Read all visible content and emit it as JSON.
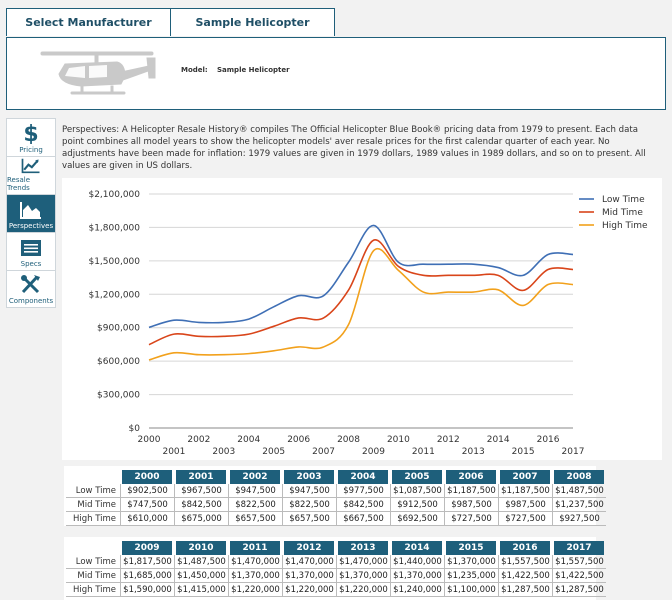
{
  "tabs": {
    "manufacturer": "Select Manufacturer",
    "model": "Sample Helicopter"
  },
  "header": {
    "model_label": "Model:",
    "model_value": "Sample Helicopter"
  },
  "sidebar": {
    "items": [
      {
        "label": "Pricing",
        "icon": "dollar-icon"
      },
      {
        "label": "Resale Trends",
        "icon": "trend-icon"
      },
      {
        "label": "Perspectives",
        "icon": "area-chart-icon"
      },
      {
        "label": "Specs",
        "icon": "list-icon"
      },
      {
        "label": "Components",
        "icon": "tools-icon"
      }
    ]
  },
  "description": "Perspectives: A Helicopter Resale History® compiles The Official Helicopter Blue Book® pricing data from 1979 to present. Each data point combines all model years to show the helicopter models' aver resale prices for the first calendar quarter of each year. No adjustments have been made for inflation: 1979 values are given in 1979 dollars, 1989 values in 1989 dollars, and so on to present. All values are given in US dollars.",
  "colors": {
    "accent": "#1e5f7b",
    "low": "#3f6fb5",
    "mid": "#d9451a",
    "high": "#f2a11c"
  },
  "chart_data": {
    "type": "line",
    "x": [
      2000,
      2001,
      2002,
      2003,
      2004,
      2005,
      2006,
      2007,
      2008,
      2009,
      2010,
      2011,
      2012,
      2013,
      2014,
      2015,
      2016,
      2017
    ],
    "ylim": [
      0,
      2100000
    ],
    "yticks": [
      "$0",
      "$300,000",
      "$600,000",
      "$900,000",
      "$1,200,000",
      "$1,500,000",
      "$1,800,000",
      "$2,100,000"
    ],
    "legend_position": "top-right",
    "grid": true,
    "series": [
      {
        "name": "Low Time",
        "values": [
          902500,
          967500,
          947500,
          947500,
          977500,
          1087500,
          1187500,
          1187500,
          1487500,
          1817500,
          1487500,
          1470000,
          1470000,
          1470000,
          1440000,
          1370000,
          1557500,
          1557500
        ]
      },
      {
        "name": "Mid Time",
        "values": [
          747500,
          842500,
          822500,
          822500,
          842500,
          912500,
          987500,
          987500,
          1237500,
          1685000,
          1450000,
          1370000,
          1370000,
          1370000,
          1370000,
          1235000,
          1422500,
          1422500
        ]
      },
      {
        "name": "High Time",
        "values": [
          610000,
          675000,
          657500,
          657500,
          667500,
          692500,
          727500,
          727500,
          927500,
          1590000,
          1415000,
          1220000,
          1220000,
          1220000,
          1240000,
          1100000,
          1287500,
          1287500
        ]
      }
    ]
  },
  "table": {
    "row_labels": [
      "Low Time",
      "Mid Time",
      "High Time"
    ],
    "blocks": [
      {
        "years": [
          "2000",
          "2001",
          "2002",
          "2003",
          "2004",
          "2005",
          "2006",
          "2007",
          "2008"
        ],
        "rows": [
          [
            "$902,500",
            "$967,500",
            "$947,500",
            "$947,500",
            "$977,500",
            "$1,087,500",
            "$1,187,500",
            "$1,187,500",
            "$1,487,500"
          ],
          [
            "$747,500",
            "$842,500",
            "$822,500",
            "$822,500",
            "$842,500",
            "$912,500",
            "$987,500",
            "$987,500",
            "$1,237,500"
          ],
          [
            "$610,000",
            "$675,000",
            "$657,500",
            "$657,500",
            "$667,500",
            "$692,500",
            "$727,500",
            "$727,500",
            "$927,500"
          ]
        ]
      },
      {
        "years": [
          "2009",
          "2010",
          "2011",
          "2012",
          "2013",
          "2014",
          "2015",
          "2016",
          "2017"
        ],
        "rows": [
          [
            "$1,817,500",
            "$1,487,500",
            "$1,470,000",
            "$1,470,000",
            "$1,470,000",
            "$1,440,000",
            "$1,370,000",
            "$1,557,500",
            "$1,557,500"
          ],
          [
            "$1,685,000",
            "$1,450,000",
            "$1,370,000",
            "$1,370,000",
            "$1,370,000",
            "$1,370,000",
            "$1,235,000",
            "$1,422,500",
            "$1,422,500"
          ],
          [
            "$1,590,000",
            "$1,415,000",
            "$1,220,000",
            "$1,220,000",
            "$1,220,000",
            "$1,240,000",
            "$1,100,000",
            "$1,287,500",
            "$1,287,500"
          ]
        ]
      }
    ]
  }
}
